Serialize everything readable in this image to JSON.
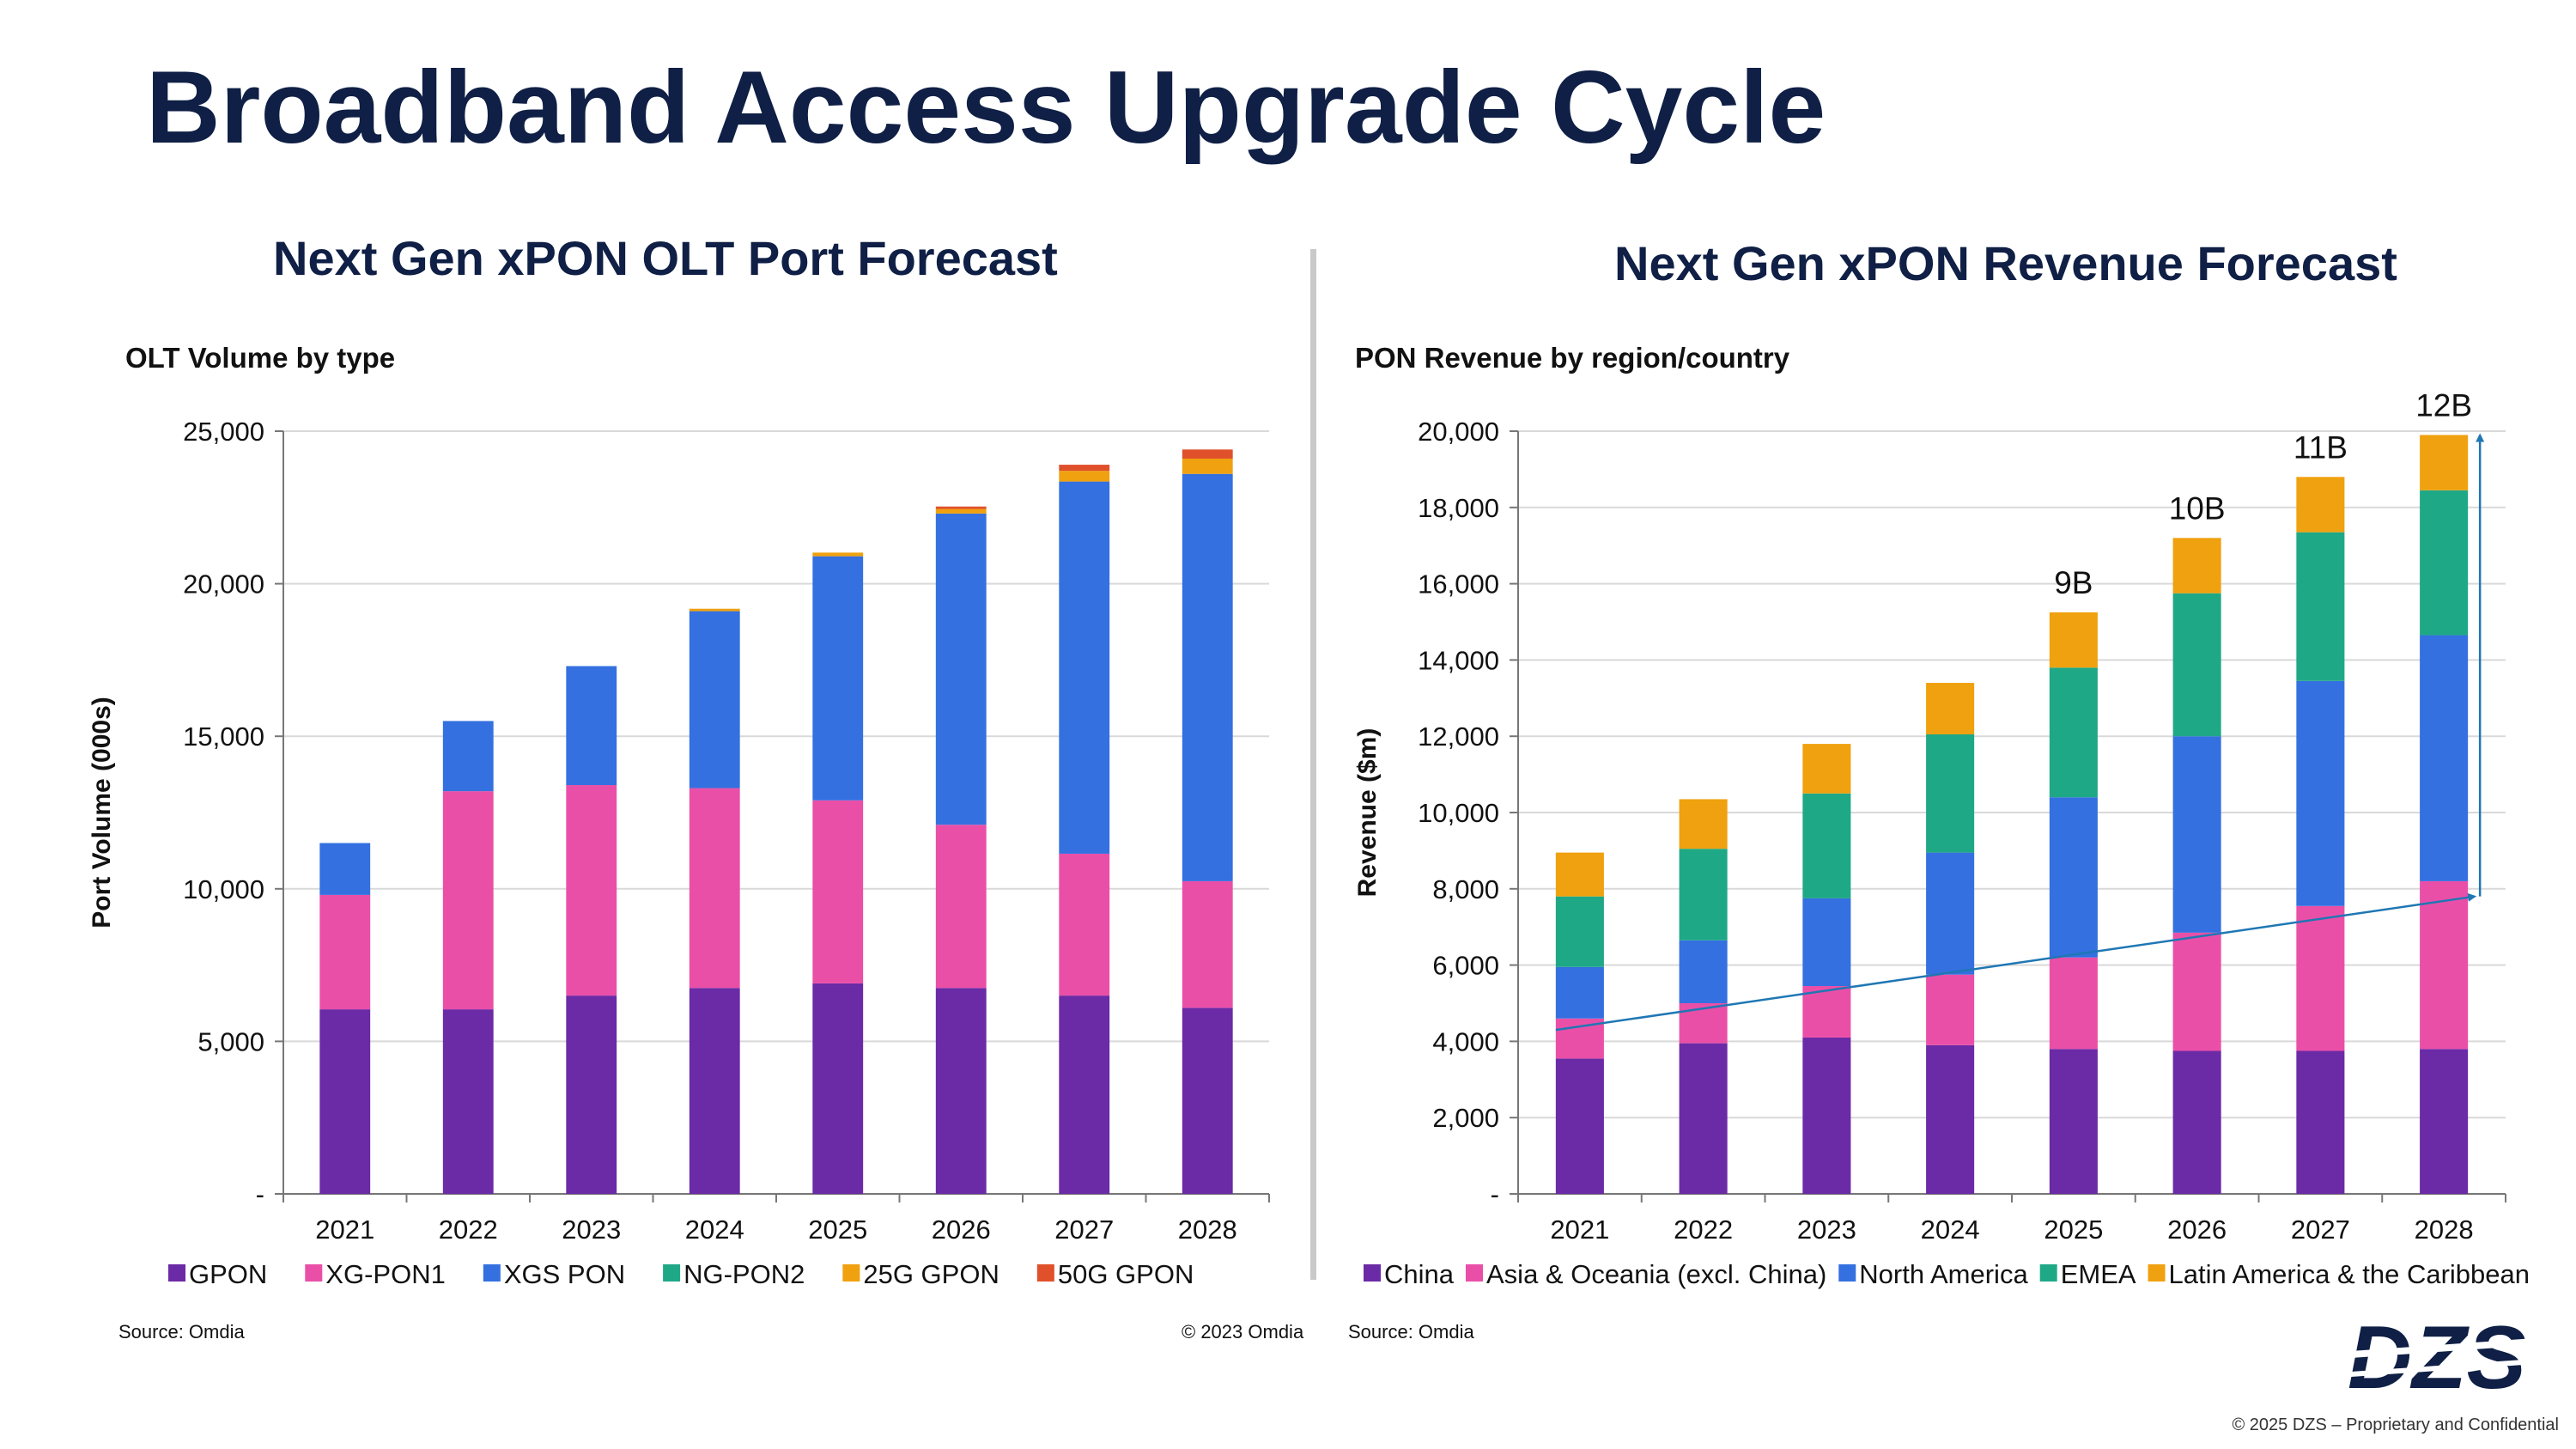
{
  "page": {
    "title": "Broadband Access Upgrade Cycle",
    "copyright": "© 2025 DZS – Proprietary and Confidential",
    "logo_text": "DZS"
  },
  "left": {
    "chart_title": "Next Gen xPON OLT Port Forecast",
    "subtitle": "OLT Volume by type",
    "source": "Source: Omdia",
    "copyright": "© 2023 Omdia"
  },
  "right": {
    "chart_title": "Next Gen xPON Revenue Forecast",
    "subtitle": "PON Revenue by region/country",
    "source": "Source: Omdia"
  },
  "chart_data": [
    {
      "type": "bar",
      "stacked": true,
      "title": "OLT Volume by type",
      "xlabel": "",
      "ylabel": "Port Volume (000s)",
      "ylim": [
        0,
        25000
      ],
      "yticks": [
        0,
        5000,
        10000,
        15000,
        20000,
        25000
      ],
      "ytick_labels": [
        "-",
        "5,000",
        "10,000",
        "15,000",
        "20,000",
        "25,000"
      ],
      "grid": true,
      "legend_position": "bottom",
      "categories": [
        "2021",
        "2022",
        "2023",
        "2024",
        "2025",
        "2026",
        "2027",
        "2028"
      ],
      "series": [
        {
          "name": "GPON",
          "color": "#6b2aa6",
          "values": [
            6050,
            6050,
            6500,
            6750,
            6900,
            6750,
            6500,
            6100
          ]
        },
        {
          "name": "XG-PON1",
          "color": "#ea4fa8",
          "values": [
            3750,
            7150,
            6900,
            6550,
            6000,
            5350,
            4650,
            4150
          ]
        },
        {
          "name": "XGS PON",
          "color": "#3470e0",
          "values": [
            1700,
            2300,
            3900,
            5800,
            8000,
            10200,
            12200,
            13350
          ]
        },
        {
          "name": "NG-PON2",
          "color": "#1fa886",
          "values": [
            0,
            0,
            0,
            0,
            0,
            0,
            0,
            0
          ]
        },
        {
          "name": "25G GPON",
          "color": "#f0a10f",
          "values": [
            0,
            0,
            0,
            80,
            120,
            150,
            350,
            500
          ]
        },
        {
          "name": "50G GPON",
          "color": "#e0502a",
          "values": [
            0,
            0,
            0,
            0,
            0,
            80,
            200,
            300
          ]
        }
      ]
    },
    {
      "type": "bar",
      "stacked": true,
      "title": "PON Revenue by region/country",
      "xlabel": "",
      "ylabel": "Revenue ($m)",
      "ylim": [
        0,
        20000
      ],
      "yticks": [
        0,
        2000,
        4000,
        6000,
        8000,
        10000,
        12000,
        14000,
        16000,
        18000,
        20000
      ],
      "ytick_labels": [
        "-",
        "2,000",
        "4,000",
        "6,000",
        "8,000",
        "10,000",
        "12,000",
        "14,000",
        "16,000",
        "18,000",
        "20,000"
      ],
      "grid": true,
      "legend_position": "bottom",
      "categories": [
        "2021",
        "2022",
        "2023",
        "2024",
        "2025",
        "2026",
        "2027",
        "2028"
      ],
      "series": [
        {
          "name": "China",
          "color": "#6b2aa6",
          "values": [
            3550,
            3950,
            4100,
            3900,
            3800,
            3750,
            3750,
            3800
          ]
        },
        {
          "name": "Asia & Oceania (excl. China)",
          "color": "#ea4fa8",
          "values": [
            1050,
            1050,
            1350,
            1850,
            2400,
            3100,
            3800,
            4400
          ]
        },
        {
          "name": "North America",
          "color": "#3470e0",
          "values": [
            1350,
            1650,
            2300,
            3200,
            4200,
            5150,
            5900,
            6450
          ]
        },
        {
          "name": "EMEA",
          "color": "#1fa886",
          "values": [
            1850,
            2400,
            2750,
            3100,
            3400,
            3750,
            3900,
            3800
          ]
        },
        {
          "name": "Latin America & the Caribbean",
          "color": "#f0a10f",
          "values": [
            1150,
            1300,
            1300,
            1350,
            1450,
            1450,
            1450,
            1450
          ]
        }
      ],
      "annotations": [
        {
          "category": "2025",
          "text": "9B"
        },
        {
          "category": "2026",
          "text": "10B"
        },
        {
          "category": "2027",
          "text": "11B"
        },
        {
          "category": "2028",
          "text": "12B"
        }
      ],
      "trend_arrow": {
        "from": {
          "category": "2021",
          "value": 4300
        },
        "to": {
          "category": "2028",
          "value": 7800
        },
        "color": "#1f77b4"
      },
      "growth_arrow": {
        "category": "2028",
        "from_value": 7800,
        "to_value": 19900,
        "color": "#1f77b4"
      }
    }
  ]
}
